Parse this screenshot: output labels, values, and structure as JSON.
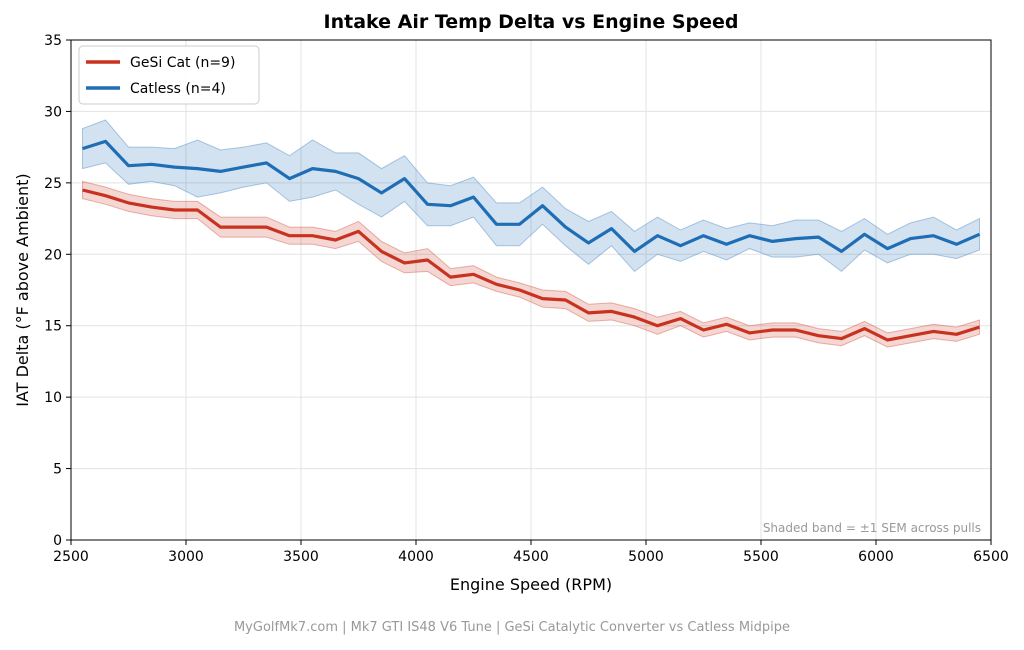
{
  "chart_data": {
    "type": "line",
    "title": "Intake Air Temp Delta vs Engine Speed",
    "xlabel": "Engine Speed (RPM)",
    "ylabel": "IAT Delta (°F above Ambient)",
    "xlim": [
      2500,
      6500
    ],
    "ylim": [
      0,
      35
    ],
    "xticks": [
      2500,
      3000,
      3500,
      4000,
      4500,
      5000,
      5500,
      6000,
      6500
    ],
    "yticks": [
      0,
      5,
      10,
      15,
      20,
      25,
      30,
      35
    ],
    "grid": true,
    "legend_position": "top-left",
    "annotation": "Shaded band = ±1 SEM across pulls",
    "x": [
      2550,
      2650,
      2750,
      2850,
      2950,
      3050,
      3150,
      3250,
      3350,
      3450,
      3550,
      3650,
      3750,
      3850,
      3950,
      4050,
      4150,
      4250,
      4350,
      4450,
      4550,
      4650,
      4750,
      4850,
      4950,
      5050,
      5150,
      5250,
      5350,
      5450,
      5550,
      5650,
      5750,
      5850,
      5950,
      6050,
      6150,
      6250,
      6350,
      6450
    ],
    "series": [
      {
        "name": "GeSi Cat (n=9)",
        "color": "#c8321e",
        "values": [
          24.5,
          24.1,
          23.6,
          23.3,
          23.1,
          23.1,
          21.9,
          21.9,
          21.9,
          21.3,
          21.3,
          21.0,
          21.6,
          20.2,
          19.4,
          19.6,
          18.4,
          18.6,
          17.9,
          17.5,
          16.9,
          16.8,
          15.9,
          16.0,
          15.6,
          15.0,
          15.5,
          14.7,
          15.1,
          14.5,
          14.7,
          14.7,
          14.3,
          14.1,
          14.8,
          14.0,
          14.3,
          14.6,
          14.4,
          14.9
        ],
        "sem": [
          0.6,
          0.6,
          0.6,
          0.6,
          0.6,
          0.6,
          0.7,
          0.7,
          0.7,
          0.6,
          0.6,
          0.6,
          0.7,
          0.7,
          0.7,
          0.8,
          0.6,
          0.6,
          0.5,
          0.5,
          0.6,
          0.6,
          0.6,
          0.6,
          0.6,
          0.6,
          0.5,
          0.5,
          0.5,
          0.5,
          0.5,
          0.5,
          0.5,
          0.5,
          0.5,
          0.5,
          0.5,
          0.5,
          0.5,
          0.5
        ]
      },
      {
        "name": "Catless (n=4)",
        "color": "#1f6db5",
        "values": [
          27.4,
          27.9,
          26.2,
          26.3,
          26.1,
          26.0,
          25.8,
          26.1,
          26.4,
          25.3,
          26.0,
          25.8,
          25.3,
          24.3,
          25.3,
          23.5,
          23.4,
          24.0,
          22.1,
          22.1,
          23.4,
          21.9,
          20.8,
          21.8,
          20.2,
          21.3,
          20.6,
          21.3,
          20.7,
          21.3,
          20.9,
          21.1,
          21.2,
          20.2,
          21.4,
          20.4,
          21.1,
          21.3,
          20.7,
          21.4
        ],
        "sem": [
          1.4,
          1.5,
          1.3,
          1.2,
          1.3,
          2.0,
          1.5,
          1.4,
          1.4,
          1.6,
          2.0,
          1.3,
          1.8,
          1.7,
          1.6,
          1.5,
          1.4,
          1.4,
          1.5,
          1.5,
          1.3,
          1.3,
          1.5,
          1.2,
          1.4,
          1.3,
          1.1,
          1.1,
          1.1,
          0.9,
          1.1,
          1.3,
          1.2,
          1.4,
          1.1,
          1.0,
          1.1,
          1.3,
          1.0,
          1.1
        ]
      }
    ]
  },
  "footer": "MyGolfMk7.com  |  Mk7 GTI IS48 V6 Tune  |  GeSi Catalytic Converter vs Catless Midpipe"
}
